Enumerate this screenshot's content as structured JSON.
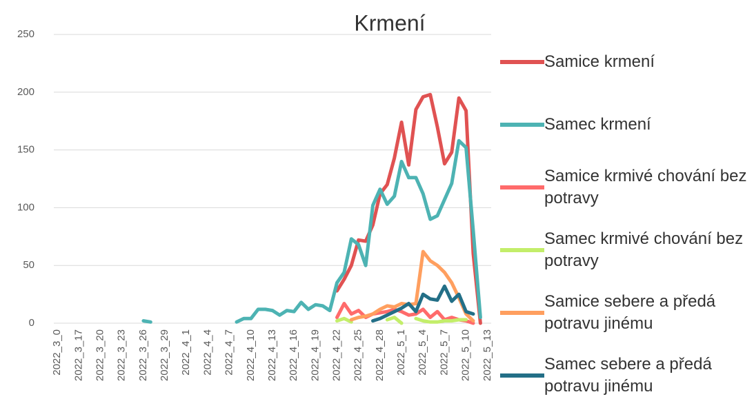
{
  "chart_data": {
    "type": "line",
    "title": "Krmení",
    "categories": [
      "2022_3_0",
      null,
      null,
      "2022_3_17",
      null,
      null,
      "2022_3_20",
      null,
      null,
      "2022_3_23",
      null,
      null,
      "2022_3_26",
      null,
      null,
      "2022_3_29",
      null,
      null,
      "2022_4_1",
      null,
      null,
      "2022_4_4",
      null,
      null,
      "2022_4_7",
      null,
      null,
      "2022_4_10",
      null,
      null,
      "2022_4_13",
      null,
      null,
      "2022_4_16",
      null,
      null,
      "2022_4_19",
      null,
      null,
      "2022_4_22",
      null,
      null,
      "2022_4_25",
      null,
      null,
      "2022_4_28",
      null,
      null,
      "2022_5_1",
      null,
      null,
      "2022_5_4",
      null,
      null,
      "2022_5_7",
      null,
      null,
      "2022_5_10",
      null,
      null,
      "2022_5_13"
    ],
    "series": [
      {
        "name": "Samice krmení",
        "color": "#e05252",
        "values": [
          null,
          null,
          null,
          null,
          null,
          null,
          null,
          null,
          null,
          null,
          null,
          null,
          null,
          null,
          null,
          null,
          null,
          null,
          null,
          null,
          null,
          null,
          null,
          null,
          null,
          null,
          null,
          null,
          null,
          null,
          null,
          null,
          null,
          null,
          null,
          null,
          null,
          null,
          null,
          28,
          38,
          50,
          72,
          71,
          85,
          112,
          120,
          143,
          174,
          137,
          185,
          196,
          198,
          170,
          138,
          148,
          195,
          184,
          60,
          0,
          null
        ]
      },
      {
        "name": "Samec krmení",
        "color": "#4db3b3",
        "values": [
          null,
          null,
          null,
          null,
          null,
          null,
          null,
          null,
          null,
          null,
          null,
          null,
          2,
          1,
          null,
          null,
          null,
          null,
          null,
          null,
          null,
          null,
          null,
          null,
          null,
          1,
          4,
          4,
          12,
          12,
          11,
          7,
          11,
          10,
          18,
          12,
          16,
          15,
          11,
          35,
          44,
          73,
          68,
          50,
          102,
          116,
          103,
          110,
          140,
          126,
          126,
          112,
          90,
          93,
          107,
          121,
          158,
          152,
          80,
          5,
          null
        ]
      },
      {
        "name": "Samice krmivé chování bez potravy",
        "color": "#ff6b6b",
        "values": [
          null,
          null,
          null,
          null,
          null,
          null,
          null,
          null,
          null,
          null,
          null,
          null,
          null,
          null,
          null,
          null,
          null,
          null,
          null,
          null,
          null,
          null,
          null,
          null,
          null,
          null,
          null,
          null,
          null,
          null,
          null,
          null,
          null,
          null,
          null,
          null,
          null,
          null,
          null,
          5,
          17,
          8,
          11,
          5,
          8,
          9,
          10,
          12,
          10,
          7,
          8,
          12,
          5,
          10,
          3,
          5,
          3,
          2,
          0,
          null,
          null
        ]
      },
      {
        "name": "Samec krmivé chování bez potravy",
        "color": "#c3ee6a",
        "values": [
          null,
          null,
          null,
          null,
          null,
          null,
          null,
          null,
          null,
          null,
          null,
          null,
          null,
          null,
          null,
          null,
          null,
          null,
          null,
          null,
          null,
          null,
          null,
          null,
          null,
          null,
          null,
          null,
          null,
          null,
          null,
          null,
          null,
          null,
          null,
          null,
          null,
          null,
          null,
          2,
          4,
          1,
          null,
          null,
          null,
          null,
          3,
          5,
          0,
          null,
          4,
          2,
          1,
          1,
          2,
          2,
          3,
          3,
          null,
          null,
          null
        ]
      },
      {
        "name": "Samice sebere a předá potravu jinému",
        "color": "#ff9f5f",
        "values": [
          null,
          null,
          null,
          null,
          null,
          null,
          null,
          null,
          null,
          null,
          null,
          null,
          null,
          null,
          null,
          null,
          null,
          null,
          null,
          null,
          null,
          null,
          null,
          null,
          null,
          null,
          null,
          null,
          null,
          null,
          null,
          null,
          null,
          null,
          null,
          null,
          null,
          null,
          null,
          null,
          null,
          3,
          5,
          6,
          8,
          12,
          15,
          14,
          17,
          16,
          17,
          62,
          54,
          50,
          44,
          35,
          22,
          8,
          2,
          null,
          null
        ]
      },
      {
        "name": "Samec sebere a předá potravu jinému",
        "color": "#236f87",
        "values": [
          null,
          null,
          null,
          null,
          null,
          null,
          null,
          null,
          null,
          null,
          null,
          null,
          null,
          null,
          null,
          null,
          null,
          null,
          null,
          null,
          null,
          null,
          null,
          null,
          null,
          null,
          null,
          null,
          null,
          null,
          null,
          null,
          null,
          null,
          null,
          null,
          null,
          null,
          null,
          null,
          null,
          null,
          null,
          null,
          2,
          4,
          7,
          10,
          13,
          17,
          10,
          25,
          21,
          20,
          32,
          19,
          25,
          10,
          8,
          null,
          null
        ]
      }
    ],
    "ylim": [
      0,
      250
    ],
    "yticks": [
      0,
      50,
      100,
      150,
      200,
      250
    ],
    "grid": true
  }
}
